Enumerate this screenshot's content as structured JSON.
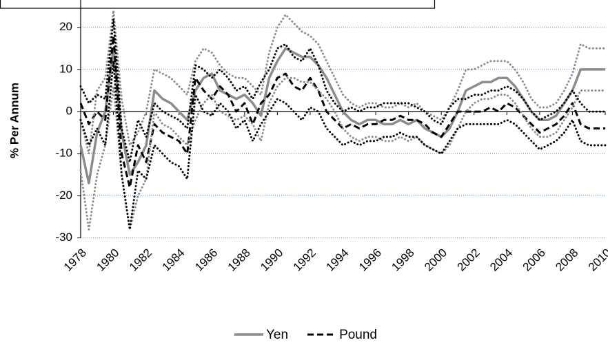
{
  "chart_data": {
    "type": "line",
    "y_label": "% Per Annum",
    "x": [
      1978,
      1978.5,
      1979,
      1979.5,
      1980,
      1980.5,
      1981,
      1981.5,
      1982,
      1982.5,
      1983,
      1983.5,
      1984,
      1984.5,
      1985,
      1985.5,
      1986,
      1986.5,
      1987,
      1987.5,
      1988,
      1988.5,
      1989,
      1989.5,
      1990,
      1990.5,
      1991,
      1991.5,
      1992,
      1992.5,
      1993,
      1993.5,
      1994,
      1994.5,
      1995,
      1995.5,
      1996,
      1996.5,
      1997,
      1997.5,
      1998,
      1998.5,
      1999,
      1999.5,
      2000,
      2000.5,
      2001,
      2001.5,
      2002,
      2002.5,
      2003,
      2003.5,
      2004,
      2004.5,
      2005,
      2005.5,
      2006,
      2006.5,
      2007,
      2007.5,
      2008,
      2008.5,
      2009,
      2009.5,
      2010
    ],
    "series": [
      {
        "name": "Yen",
        "color": "#8c8c8c",
        "style": "solid",
        "values": [
          -8,
          -17,
          -5,
          0,
          15,
          -5,
          -15,
          -12,
          -8,
          5,
          3,
          2,
          0,
          -2,
          5,
          8,
          9,
          5,
          4,
          3,
          4,
          2,
          -1,
          8,
          12,
          15,
          14,
          13,
          13,
          11,
          8,
          4,
          0,
          -2,
          -3,
          -2,
          -2,
          -3,
          -3,
          -2,
          -3,
          -2,
          -4,
          -5,
          -6,
          -4,
          0,
          5,
          6,
          7,
          7,
          8,
          8,
          6,
          3,
          0,
          -2,
          -2,
          -1,
          2,
          5,
          10,
          10,
          10,
          10
        ]
      },
      {
        "name": "Pound",
        "color": "#000000",
        "style": "dashed",
        "values": [
          2,
          -3,
          0,
          -2,
          18,
          -10,
          -18,
          -8,
          -12,
          -3,
          -5,
          -6,
          -7,
          -10,
          8,
          5,
          3,
          6,
          4,
          0,
          2,
          -3,
          2,
          4,
          8,
          9,
          6,
          5,
          8,
          5,
          0,
          -2,
          -4,
          -3,
          -4,
          -3,
          -3,
          -2,
          -2,
          -1,
          -2,
          -2,
          -3,
          -5,
          -6,
          -3,
          0,
          0,
          0,
          0,
          1,
          0,
          2,
          1,
          -1,
          -3,
          -5,
          -4,
          -3,
          -1,
          2,
          -3,
          -4,
          -4,
          -4
        ]
      },
      {
        "color": "#8c8c8c",
        "style": "dotted",
        "values": [
          -2,
          -10,
          5,
          8,
          24,
          3,
          -8,
          -5,
          0,
          10,
          9,
          8,
          6,
          4,
          12,
          15,
          14,
          11,
          9,
          8,
          8,
          6,
          4,
          14,
          20,
          23,
          21,
          19,
          18,
          16,
          12,
          8,
          4,
          2,
          1,
          2,
          2,
          1,
          1,
          2,
          1,
          2,
          0,
          -1,
          -2,
          1,
          5,
          10,
          10,
          11,
          12,
          12,
          12,
          10,
          7,
          3,
          1,
          1,
          2,
          5,
          9,
          16,
          15,
          15,
          15
        ]
      },
      {
        "color": "#8c8c8c",
        "style": "dotted",
        "values": [
          -14,
          -28,
          -15,
          -8,
          6,
          -15,
          -28,
          -20,
          -16,
          0,
          -3,
          -4,
          -6,
          -8,
          -2,
          2,
          4,
          0,
          -1,
          -2,
          -1,
          -3,
          -7,
          2,
          6,
          8,
          8,
          7,
          7,
          5,
          3,
          0,
          -4,
          -6,
          -7,
          -6,
          -6,
          -7,
          -7,
          -6,
          -7,
          -6,
          -8,
          -9,
          -10,
          -8,
          -4,
          0,
          2,
          3,
          3,
          4,
          4,
          2,
          -1,
          -4,
          -6,
          -6,
          -5,
          -2,
          1,
          5,
          5,
          5,
          5
        ]
      },
      {
        "color": "#000000",
        "style": "dotted",
        "values": [
          6,
          2,
          4,
          3,
          22,
          -4,
          -12,
          -2,
          -6,
          2,
          0,
          -1,
          -2,
          -4,
          11,
          10,
          8,
          10,
          8,
          5,
          6,
          3,
          7,
          10,
          15,
          16,
          13,
          12,
          15,
          11,
          5,
          2,
          0,
          1,
          0,
          1,
          1,
          2,
          2,
          2,
          2,
          1,
          0,
          -2,
          -3,
          1,
          3,
          3,
          4,
          4,
          5,
          5,
          6,
          5,
          3,
          0,
          -2,
          -1,
          0,
          2,
          5,
          2,
          0,
          0,
          0
        ]
      },
      {
        "color": "#000000",
        "style": "dotted",
        "values": [
          -2,
          -8,
          -4,
          -8,
          12,
          -15,
          -28,
          -14,
          -16,
          -8,
          -10,
          -12,
          -13,
          -16,
          4,
          0,
          -1,
          2,
          0,
          -4,
          -2,
          -7,
          -3,
          0,
          3,
          2,
          0,
          -2,
          1,
          0,
          -4,
          -6,
          -8,
          -7,
          -8,
          -7,
          -7,
          -6,
          -6,
          -5,
          -6,
          -6,
          -8,
          -9,
          -10,
          -7,
          -4,
          -3,
          -3,
          -3,
          -3,
          -3,
          -2,
          -3,
          -5,
          -7,
          -9,
          -8,
          -7,
          -5,
          -2,
          -7,
          -8,
          -8,
          -8
        ]
      }
    ],
    "xlim": [
      1978,
      2010
    ],
    "xticks": [
      1978,
      1980,
      1982,
      1984,
      1986,
      1988,
      1990,
      1992,
      1994,
      1996,
      1998,
      2000,
      2002,
      2004,
      2006,
      2008,
      2010
    ],
    "ylim": [
      -30,
      26.5
    ],
    "yticks": [
      -30,
      -20,
      -10,
      0,
      10,
      20
    ],
    "grid": true,
    "legend": "bottom"
  }
}
